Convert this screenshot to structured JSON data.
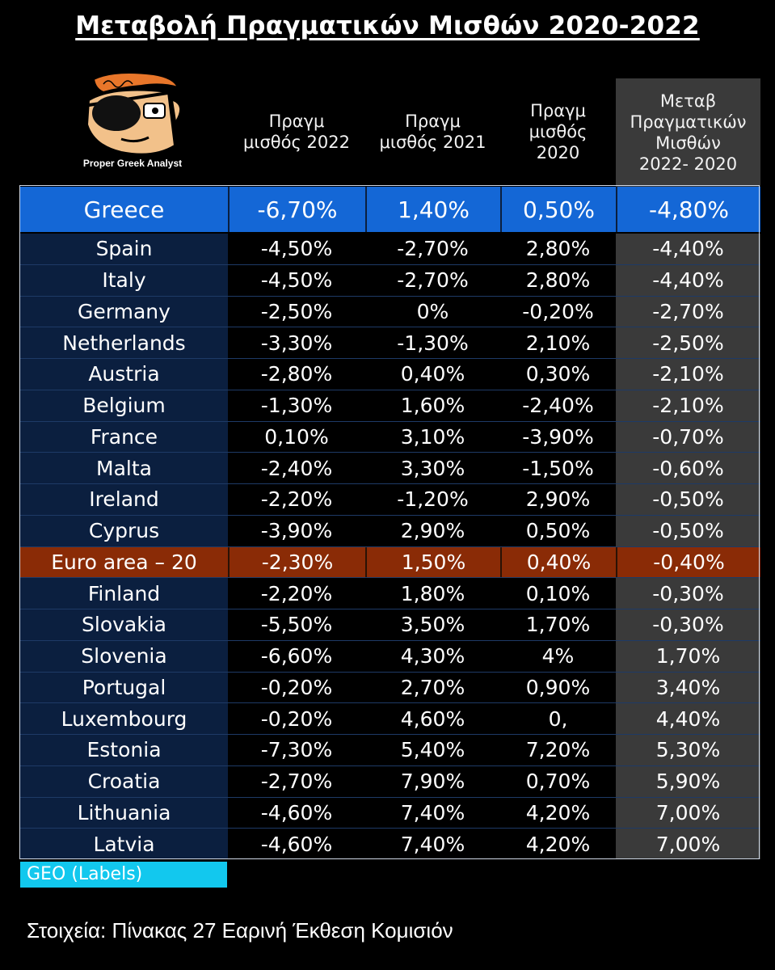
{
  "title": "Μεταβολή Πραγματικών Μισθών 2020-2022",
  "logo": {
    "caption": "Proper Greek Analyst"
  },
  "headers": {
    "col1": "Πραγμ\nμισθός 2022",
    "col2": "Πραγμ\nμισθός 2021",
    "col3": "Πραγμ\nμισθός\n2020",
    "col4": "Μεταβ\nΠραγματικών\nΜισθών\n2022- 2020"
  },
  "colors": {
    "row_bg": "#0b1f3f",
    "value_bg": "#000000",
    "change_col_bg": "#3a3a3a",
    "greece_highlight": "#1467d6",
    "euro_area_highlight": "#8a2b06",
    "geo_label_bg": "#12c8ee"
  },
  "chart_data": {
    "type": "table",
    "columns": [
      "Πραγμ μισθός 2022",
      "Πραγμ μισθός 2021",
      "Πραγμ μισθός 2020",
      "Μεταβ Πραγματικών Μισθών 2022- 2020"
    ],
    "rows": [
      {
        "label": "Greece",
        "values": [
          "-6,70%",
          "1,40%",
          "0,50%",
          "-4,80%"
        ],
        "highlight": "blue"
      },
      {
        "label": "Spain",
        "values": [
          "-4,50%",
          "-2,70%",
          "2,80%",
          "-4,40%"
        ]
      },
      {
        "label": "Italy",
        "values": [
          "-4,50%",
          "-2,70%",
          "2,80%",
          "-4,40%"
        ]
      },
      {
        "label": "Germany",
        "values": [
          "-2,50%",
          "0%",
          "-0,20%",
          "-2,70%"
        ]
      },
      {
        "label": "Netherlands",
        "values": [
          "-3,30%",
          "-1,30%",
          "2,10%",
          "-2,50%"
        ]
      },
      {
        "label": "Austria",
        "values": [
          "-2,80%",
          "0,40%",
          "0,30%",
          "-2,10%"
        ]
      },
      {
        "label": "Belgium",
        "values": [
          "-1,30%",
          "1,60%",
          "-2,40%",
          "-2,10%"
        ]
      },
      {
        "label": "France",
        "values": [
          "0,10%",
          "3,10%",
          "-3,90%",
          "-0,70%"
        ]
      },
      {
        "label": "Malta",
        "values": [
          "-2,40%",
          "3,30%",
          "-1,50%",
          "-0,60%"
        ]
      },
      {
        "label": "Ireland",
        "values": [
          "-2,20%",
          "-1,20%",
          "2,90%",
          "-0,50%"
        ]
      },
      {
        "label": "Cyprus",
        "values": [
          "-3,90%",
          "2,90%",
          "0,50%",
          "-0,50%"
        ]
      },
      {
        "label": "Euro area – 20",
        "values": [
          "-2,30%",
          "1,50%",
          "0,40%",
          "-0,40%"
        ],
        "highlight": "orange"
      },
      {
        "label": "Finland",
        "values": [
          "-2,20%",
          "1,80%",
          "0,10%",
          "-0,30%"
        ]
      },
      {
        "label": "Slovakia",
        "values": [
          "-5,50%",
          "3,50%",
          "1,70%",
          "-0,30%"
        ]
      },
      {
        "label": "Slovenia",
        "values": [
          "-6,60%",
          "4,30%",
          "4%",
          "1,70%"
        ]
      },
      {
        "label": "Portugal",
        "values": [
          "-0,20%",
          "2,70%",
          "0,90%",
          "3,40%"
        ]
      },
      {
        "label": "Luxembourg",
        "values": [
          "-0,20%",
          "4,60%",
          "0,",
          "4,40%"
        ]
      },
      {
        "label": "Estonia",
        "values": [
          "-7,30%",
          "5,40%",
          "7,20%",
          "5,30%"
        ]
      },
      {
        "label": "Croatia",
        "values": [
          "-2,70%",
          "7,90%",
          "0,70%",
          "5,90%"
        ]
      },
      {
        "label": "Lithuania",
        "values": [
          "-4,60%",
          "7,40%",
          "4,20%",
          "7,00%"
        ]
      },
      {
        "label": "Latvia",
        "values": [
          "-4,60%",
          "7,40%",
          "4,20%",
          "7,00%"
        ]
      }
    ]
  },
  "geo_label": "GEO (Labels)",
  "source": "Στοιχεία: Πίνακας 27 Εαρινή Έκθεση Κομισιόν"
}
